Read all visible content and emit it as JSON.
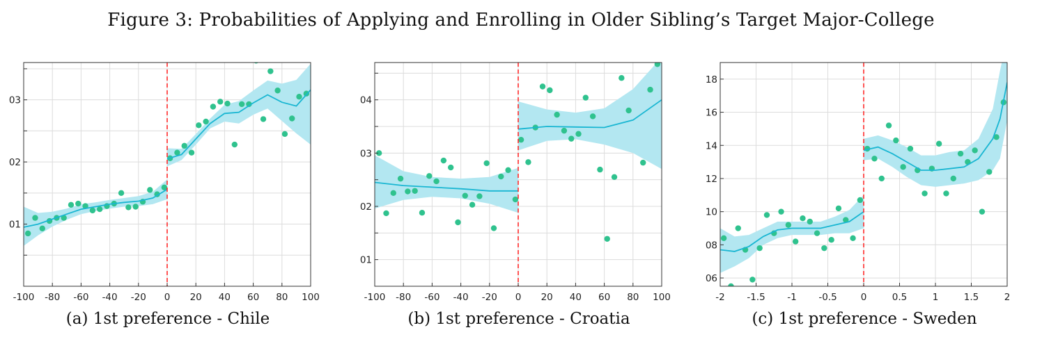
{
  "figure": {
    "title": "Figure 3: Probabilities of Applying and Enrolling in Older Sibling’s Target Major-College"
  },
  "colors": {
    "points": "#2fc28e",
    "fit_line": "#19b6d2",
    "band": "#b3e7f1",
    "cutoff": "#ff2a2a",
    "grid": "#dcdcdc"
  },
  "chart_data": [
    {
      "type": "scatter",
      "caption": "(a) 1st preference - Chile",
      "xlim": [
        -100,
        100
      ],
      "ylim": [
        0.0,
        0.036
      ],
      "xticks": [
        -100,
        -80,
        -60,
        -40,
        -20,
        0,
        20,
        40,
        60,
        80,
        100
      ],
      "xtick_labels": [
        "-100",
        "-80",
        "-60",
        "-40",
        "-20",
        "0",
        "20",
        "40",
        "60",
        "80",
        "100"
      ],
      "yticks": [
        0.005,
        0.01,
        0.015,
        0.02,
        0.025,
        0.03,
        0.035
      ],
      "ytick_labels": [
        "",
        "01",
        "",
        "02",
        "",
        "03",
        ""
      ],
      "cutoff": 0,
      "grid": true,
      "points": {
        "x": [
          -97,
          -92,
          -87,
          -82,
          -77,
          -72,
          -67,
          -62,
          -57,
          -52,
          -47,
          -42,
          -37,
          -32,
          -27,
          -22,
          -17,
          -12,
          -7,
          -2,
          2,
          7,
          12,
          17,
          22,
          27,
          32,
          37,
          42,
          47,
          52,
          57,
          62,
          67,
          72,
          77,
          82,
          87,
          92,
          97
        ],
        "y": [
          0.0085,
          0.011,
          0.0093,
          0.0105,
          0.011,
          0.011,
          0.0131,
          0.0133,
          0.0129,
          0.0122,
          0.0124,
          0.0129,
          0.0133,
          0.015,
          0.0127,
          0.0128,
          0.0136,
          0.0155,
          0.0148,
          0.0159,
          0.0206,
          0.0215,
          0.0226,
          0.0215,
          0.0259,
          0.0265,
          0.0289,
          0.0297,
          0.0294,
          0.0228,
          0.0293,
          0.0293,
          0.0363,
          0.0269,
          0.0346,
          0.0315,
          0.0245,
          0.027,
          0.0305,
          0.031
        ]
      },
      "fit_left": {
        "x": [
          -100,
          -90,
          -80,
          -70,
          -60,
          -50,
          -40,
          -30,
          -20,
          -10,
          0
        ],
        "y": [
          0.0095,
          0.01,
          0.0108,
          0.0116,
          0.0124,
          0.0128,
          0.0132,
          0.0135,
          0.0137,
          0.0142,
          0.0156
        ],
        "lower": [
          0.0065,
          0.0082,
          0.0096,
          0.0107,
          0.0116,
          0.0121,
          0.0125,
          0.0128,
          0.0129,
          0.0132,
          0.014
        ],
        "upper": [
          0.0128,
          0.0118,
          0.012,
          0.0125,
          0.0132,
          0.0135,
          0.0139,
          0.0142,
          0.0145,
          0.0152,
          0.0172
        ]
      },
      "fit_right": {
        "x": [
          0,
          10,
          20,
          30,
          40,
          50,
          60,
          70,
          80,
          90,
          100
        ],
        "y": [
          0.0205,
          0.0212,
          0.0237,
          0.0262,
          0.0278,
          0.028,
          0.0295,
          0.0308,
          0.0296,
          0.029,
          0.0316
        ],
        "lower": [
          0.0193,
          0.0203,
          0.0228,
          0.0254,
          0.0265,
          0.0262,
          0.0276,
          0.0286,
          0.0266,
          0.0246,
          0.0228
        ],
        "upper": [
          0.0222,
          0.0221,
          0.0245,
          0.027,
          0.0292,
          0.0298,
          0.0315,
          0.0331,
          0.0326,
          0.0332,
          0.0358
        ]
      }
    },
    {
      "type": "scatter",
      "caption": "(b) 1st preference - Croatia",
      "xlim": [
        -100,
        100
      ],
      "ylim": [
        0.005,
        0.047
      ],
      "xticks": [
        -100,
        -80,
        -60,
        -40,
        -20,
        0,
        20,
        40,
        60,
        80,
        100
      ],
      "xtick_labels": [
        "-100",
        "-80",
        "-60",
        "-40",
        "-20",
        "0",
        "20",
        "40",
        "60",
        "80",
        "100"
      ],
      "yticks": [
        0.01,
        0.015,
        0.02,
        0.025,
        0.03,
        0.035,
        0.04,
        0.045
      ],
      "ytick_labels": [
        "01",
        "",
        "02",
        "",
        "03",
        "",
        "04",
        ""
      ],
      "cutoff": 0,
      "grid": true,
      "points": {
        "x": [
          -97,
          -92,
          -87,
          -82,
          -77,
          -72,
          -67,
          -62,
          -57,
          -52,
          -47,
          -42,
          -37,
          -32,
          -27,
          -22,
          -17,
          -12,
          -7,
          -2,
          2,
          7,
          12,
          17,
          22,
          27,
          32,
          37,
          42,
          47,
          52,
          57,
          62,
          67,
          72,
          77,
          82,
          87,
          92,
          97
        ],
        "y": [
          0.03,
          0.0187,
          0.0225,
          0.0252,
          0.0228,
          0.0229,
          0.0188,
          0.0257,
          0.0247,
          0.0286,
          0.0273,
          0.017,
          0.022,
          0.0203,
          0.0219,
          0.0281,
          0.0159,
          0.0256,
          0.0268,
          0.0213,
          0.0325,
          0.0283,
          0.0348,
          0.0425,
          0.0418,
          0.0372,
          0.0342,
          0.0327,
          0.0336,
          0.0404,
          0.0369,
          0.0269,
          0.0139,
          0.0255,
          0.0441,
          0.038,
          0.0475,
          0.0282,
          0.0419,
          0.0467
        ]
      },
      "fit_left": {
        "x": [
          -100,
          -80,
          -60,
          -40,
          -20,
          0
        ],
        "y": [
          0.0245,
          0.0239,
          0.0236,
          0.0233,
          0.0229,
          0.0229
        ],
        "lower": [
          0.0196,
          0.0212,
          0.0218,
          0.0215,
          0.0205,
          0.0188
        ],
        "upper": [
          0.0296,
          0.0266,
          0.0255,
          0.0252,
          0.0255,
          0.0272
        ]
      },
      "fit_right": {
        "x": [
          0,
          20,
          40,
          60,
          80,
          100
        ],
        "y": [
          0.0345,
          0.035,
          0.0349,
          0.0348,
          0.0362,
          0.04
        ],
        "lower": [
          0.0305,
          0.0323,
          0.0326,
          0.0316,
          0.03,
          0.027
        ],
        "upper": [
          0.0397,
          0.0382,
          0.0376,
          0.0384,
          0.042,
          0.048
        ]
      }
    },
    {
      "type": "scatter",
      "caption": "(c) 1st preference - Sweden",
      "xlim": [
        -2,
        2
      ],
      "ylim": [
        0.055,
        0.19
      ],
      "xticks": [
        -2,
        -1.5,
        -1,
        -0.5,
        0,
        0.5,
        1,
        1.5,
        2
      ],
      "xtick_labels": [
        "-2",
        "-1.5",
        "-1",
        "-0.5",
        "0",
        "0.5",
        "1",
        "1.5",
        "2"
      ],
      "yticks": [
        0.06,
        0.08,
        0.1,
        0.12,
        0.14,
        0.16,
        0.18
      ],
      "ytick_labels": [
        "06",
        "08",
        "10",
        "12",
        "14",
        "16",
        "18"
      ],
      "cutoff": 0,
      "grid": true,
      "points": {
        "x": [
          -1.95,
          -1.85,
          -1.75,
          -1.65,
          -1.55,
          -1.45,
          -1.35,
          -1.25,
          -1.15,
          -1.05,
          -0.95,
          -0.85,
          -0.75,
          -0.65,
          -0.55,
          -0.45,
          -0.35,
          -0.25,
          -0.15,
          -0.05,
          0.05,
          0.15,
          0.25,
          0.35,
          0.45,
          0.55,
          0.65,
          0.75,
          0.85,
          0.95,
          1.05,
          1.15,
          1.25,
          1.35,
          1.45,
          1.55,
          1.65,
          1.75,
          1.85,
          1.95
        ],
        "y": [
          0.084,
          0.055,
          0.09,
          0.077,
          0.059,
          0.078,
          0.098,
          0.087,
          0.1,
          0.092,
          0.082,
          0.096,
          0.094,
          0.087,
          0.078,
          0.083,
          0.102,
          0.095,
          0.084,
          0.107,
          0.138,
          0.132,
          0.12,
          0.152,
          0.143,
          0.127,
          0.138,
          0.125,
          0.111,
          0.126,
          0.141,
          0.111,
          0.12,
          0.135,
          0.13,
          0.137,
          0.1,
          0.124,
          0.145,
          0.166
        ]
      },
      "fit_left": {
        "x": [
          -2,
          -1.8,
          -1.6,
          -1.4,
          -1.2,
          -1.0,
          -0.8,
          -0.6,
          -0.4,
          -0.2,
          0
        ],
        "y": [
          0.077,
          0.076,
          0.079,
          0.085,
          0.089,
          0.09,
          0.09,
          0.09,
          0.092,
          0.094,
          0.1
        ],
        "lower": [
          0.063,
          0.067,
          0.072,
          0.08,
          0.084,
          0.086,
          0.086,
          0.086,
          0.087,
          0.087,
          0.09
        ],
        "upper": [
          0.09,
          0.085,
          0.086,
          0.09,
          0.094,
          0.094,
          0.094,
          0.094,
          0.097,
          0.101,
          0.11
        ]
      },
      "fit_right": {
        "x": [
          0,
          0.2,
          0.4,
          0.6,
          0.8,
          1.0,
          1.2,
          1.4,
          1.6,
          1.8,
          1.9,
          2.0
        ],
        "y": [
          0.137,
          0.139,
          0.135,
          0.13,
          0.125,
          0.125,
          0.126,
          0.127,
          0.132,
          0.144,
          0.156,
          0.178
        ],
        "lower": [
          0.131,
          0.132,
          0.127,
          0.121,
          0.116,
          0.115,
          0.116,
          0.117,
          0.119,
          0.125,
          0.132,
          0.155
        ],
        "upper": [
          0.144,
          0.146,
          0.143,
          0.139,
          0.134,
          0.134,
          0.136,
          0.137,
          0.144,
          0.162,
          0.185,
          0.205
        ]
      }
    }
  ]
}
